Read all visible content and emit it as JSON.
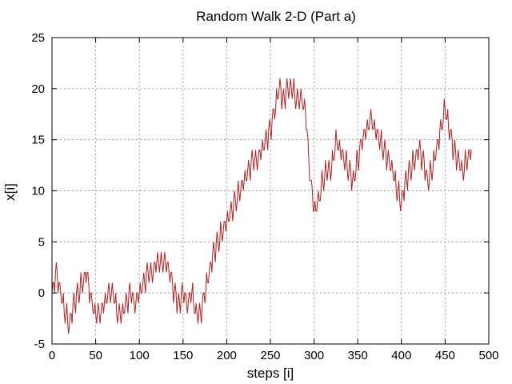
{
  "chart_data": {
    "type": "line",
    "title": "Random Walk 2-D (Part a)",
    "xlabel": "steps [i]",
    "ylabel": "x[i]",
    "xlim": [
      0,
      500
    ],
    "ylim": [
      -5,
      25
    ],
    "xticks": [
      0,
      50,
      100,
      150,
      200,
      250,
      300,
      350,
      400,
      450,
      500
    ],
    "yticks": [
      -5,
      0,
      5,
      10,
      15,
      20,
      25
    ],
    "grid": true,
    "legend": "none",
    "series": [
      {
        "color": "#b22222",
        "x": [
          0,
          5,
          10,
          15,
          20,
          25,
          30,
          35,
          40,
          45,
          50,
          55,
          60,
          65,
          70,
          75,
          80,
          85,
          90,
          95,
          100,
          105,
          110,
          115,
          120,
          125,
          130,
          135,
          140,
          145,
          150,
          155,
          160,
          165,
          170,
          175,
          180,
          185,
          190,
          195,
          200,
          205,
          210,
          215,
          220,
          225,
          230,
          235,
          240,
          245,
          250,
          255,
          260,
          265,
          270,
          275,
          280,
          285,
          290,
          295,
          300,
          305,
          310,
          315,
          320,
          325,
          330,
          335,
          340,
          345,
          350,
          355,
          360,
          365,
          370,
          375,
          380,
          385,
          390,
          395,
          400,
          405,
          410,
          415,
          420,
          425,
          430,
          435,
          440,
          445,
          450,
          455,
          460,
          465,
          470,
          475,
          480
        ],
        "y": [
          0,
          2,
          0,
          -2,
          -3,
          -1,
          0,
          1,
          2,
          -1,
          -2,
          -2,
          -1,
          0,
          0,
          -2,
          -2,
          -1,
          0,
          -1,
          0,
          1,
          2,
          2,
          3,
          3,
          3,
          2,
          0,
          -1,
          0,
          -1,
          0,
          -2,
          -2,
          0,
          2,
          4,
          5,
          6,
          7,
          8,
          9,
          10,
          11,
          12,
          13,
          13,
          14,
          15,
          16,
          18,
          20,
          19,
          20,
          20,
          19,
          19,
          18,
          12,
          8,
          9,
          11,
          12,
          12,
          15,
          14,
          13,
          12,
          11,
          13,
          15,
          16,
          17,
          16,
          15,
          14,
          13,
          12,
          10,
          9,
          11,
          12,
          13,
          14,
          13,
          11,
          12,
          14,
          16,
          18,
          16,
          14,
          13,
          12,
          13,
          14
        ]
      }
    ]
  }
}
